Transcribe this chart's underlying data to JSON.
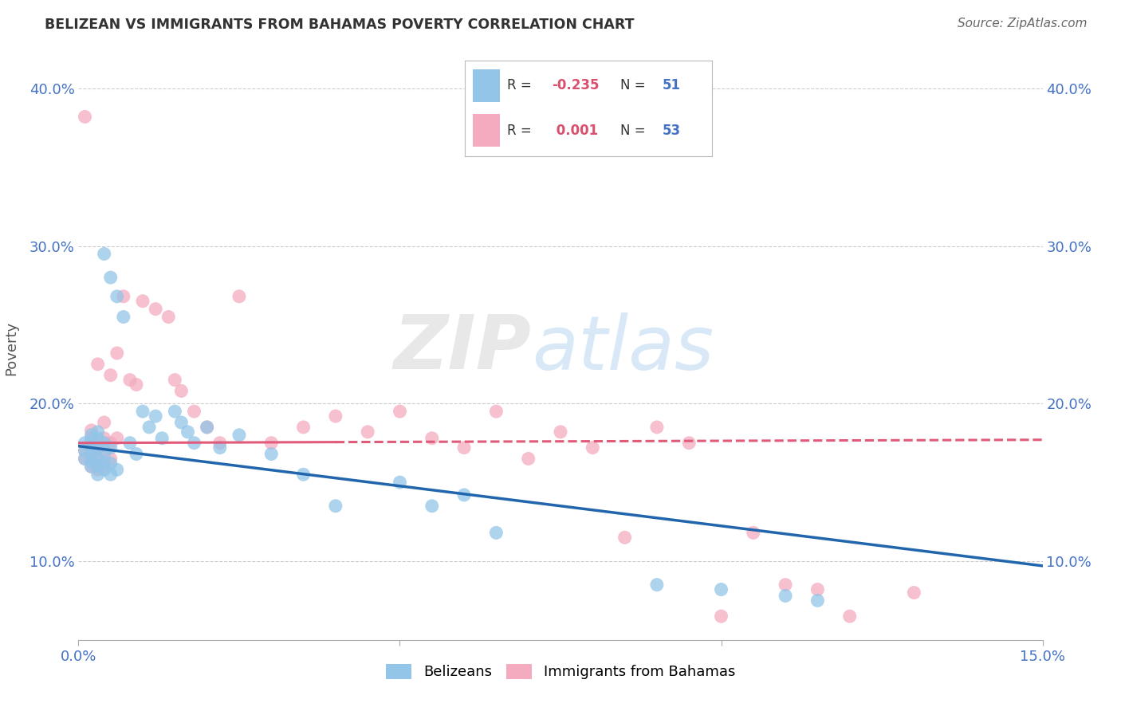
{
  "title": "BELIZEAN VS IMMIGRANTS FROM BAHAMAS POVERTY CORRELATION CHART",
  "source": "Source: ZipAtlas.com",
  "ylabel": "Poverty",
  "xlim": [
    0.0,
    0.15
  ],
  "ylim": [
    0.05,
    0.42
  ],
  "ytick_vals": [
    0.1,
    0.2,
    0.3,
    0.4
  ],
  "ytick_labels": [
    "10.0%",
    "20.0%",
    "30.0%",
    "40.0%"
  ],
  "xtick_vals": [
    0.0,
    0.05,
    0.1,
    0.15
  ],
  "xtick_labels": [
    "0.0%",
    "",
    "",
    "15.0%"
  ],
  "legend_labels": [
    "Belizeans",
    "Immigrants from Bahamas"
  ],
  "blue_color": "#92C5E8",
  "pink_color": "#F4ABBF",
  "blue_line_color": "#2166AC",
  "pink_line_color": "#E05A7A",
  "r_blue": -0.235,
  "n_blue": 51,
  "r_pink": 0.001,
  "n_pink": 53,
  "blue_line_x": [
    0.0,
    0.15
  ],
  "blue_line_y": [
    0.173,
    0.097
  ],
  "pink_line_x": [
    0.0,
    0.15
  ],
  "pink_line_y": [
    0.175,
    0.177
  ],
  "blue_scatter_x": [
    0.001,
    0.001,
    0.001,
    0.002,
    0.002,
    0.002,
    0.002,
    0.002,
    0.002,
    0.003,
    0.003,
    0.003,
    0.003,
    0.003,
    0.003,
    0.004,
    0.004,
    0.004,
    0.004,
    0.004,
    0.005,
    0.005,
    0.005,
    0.005,
    0.006,
    0.006,
    0.007,
    0.008,
    0.009,
    0.01,
    0.011,
    0.012,
    0.013,
    0.015,
    0.016,
    0.017,
    0.018,
    0.02,
    0.022,
    0.025,
    0.03,
    0.035,
    0.04,
    0.05,
    0.055,
    0.06,
    0.065,
    0.09,
    0.1,
    0.11,
    0.115
  ],
  "blue_scatter_y": [
    0.165,
    0.17,
    0.175,
    0.16,
    0.163,
    0.168,
    0.172,
    0.176,
    0.18,
    0.155,
    0.16,
    0.165,
    0.172,
    0.178,
    0.182,
    0.158,
    0.162,
    0.168,
    0.175,
    0.295,
    0.155,
    0.162,
    0.172,
    0.28,
    0.158,
    0.268,
    0.255,
    0.175,
    0.168,
    0.195,
    0.185,
    0.192,
    0.178,
    0.195,
    0.188,
    0.182,
    0.175,
    0.185,
    0.172,
    0.18,
    0.168,
    0.155,
    0.135,
    0.15,
    0.135,
    0.142,
    0.118,
    0.085,
    0.082,
    0.078,
    0.075
  ],
  "pink_scatter_x": [
    0.001,
    0.001,
    0.001,
    0.002,
    0.002,
    0.002,
    0.002,
    0.002,
    0.003,
    0.003,
    0.003,
    0.003,
    0.004,
    0.004,
    0.004,
    0.004,
    0.005,
    0.005,
    0.005,
    0.006,
    0.006,
    0.007,
    0.008,
    0.009,
    0.01,
    0.012,
    0.014,
    0.015,
    0.016,
    0.018,
    0.02,
    0.022,
    0.025,
    0.03,
    0.035,
    0.04,
    0.045,
    0.05,
    0.055,
    0.06,
    0.065,
    0.07,
    0.075,
    0.08,
    0.085,
    0.09,
    0.095,
    0.1,
    0.105,
    0.11,
    0.115,
    0.12,
    0.13
  ],
  "pink_scatter_y": [
    0.165,
    0.17,
    0.382,
    0.16,
    0.165,
    0.172,
    0.178,
    0.183,
    0.158,
    0.165,
    0.172,
    0.225,
    0.16,
    0.17,
    0.178,
    0.188,
    0.165,
    0.175,
    0.218,
    0.178,
    0.232,
    0.268,
    0.215,
    0.212,
    0.265,
    0.26,
    0.255,
    0.215,
    0.208,
    0.195,
    0.185,
    0.175,
    0.268,
    0.175,
    0.185,
    0.192,
    0.182,
    0.195,
    0.178,
    0.172,
    0.195,
    0.165,
    0.182,
    0.172,
    0.115,
    0.185,
    0.175,
    0.065,
    0.118,
    0.085,
    0.082,
    0.065,
    0.08
  ],
  "watermark_zip": "ZIP",
  "watermark_atlas": "atlas",
  "grid_color": "#CCCCCC",
  "background_color": "#FFFFFF",
  "tick_color": "#4472C4",
  "title_color": "#333333",
  "source_color": "#666666",
  "ylabel_color": "#555555"
}
